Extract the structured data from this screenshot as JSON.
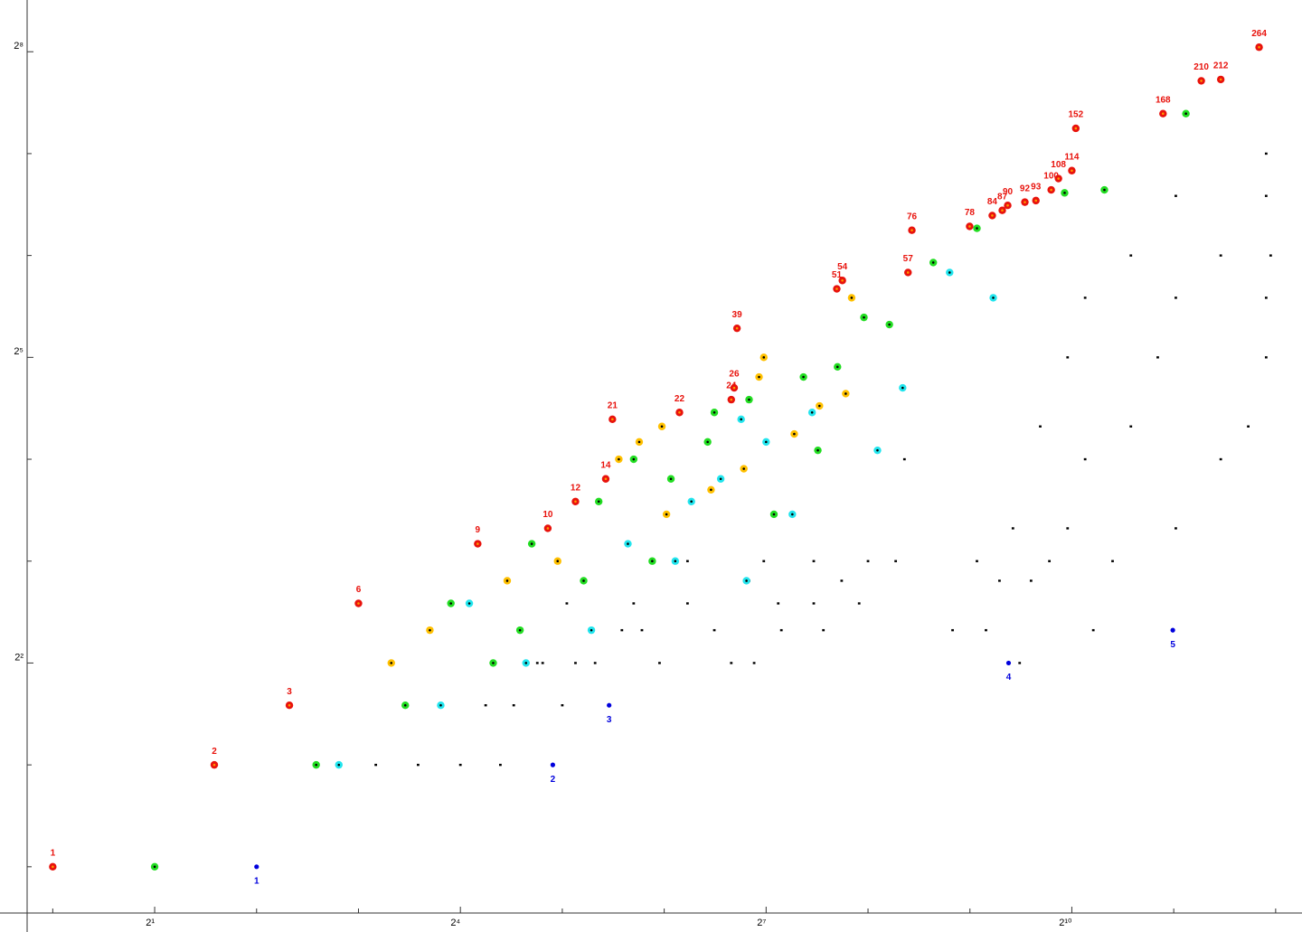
{
  "chart_data": {
    "type": "scatter",
    "xscale": "log2",
    "yscale": "log2",
    "xlim": [
      0.84,
      4900
    ],
    "ylim": [
      0.73,
      364
    ],
    "xticks": [
      {
        "value": 2,
        "label": "2¹"
      },
      {
        "value": 16,
        "label": "2⁴"
      },
      {
        "value": 128,
        "label": "2⁷"
      },
      {
        "value": 1024,
        "label": "2¹⁰"
      }
    ],
    "yticks": [
      {
        "value": 4,
        "label": "2²"
      },
      {
        "value": 32,
        "label": "2⁵"
      },
      {
        "value": 256,
        "label": "2⁸"
      }
    ],
    "xminor_ticks": [
      1,
      4,
      8,
      32,
      64,
      256,
      512,
      2048,
      4096
    ],
    "yminor_ticks": [
      1,
      2,
      8,
      16,
      64,
      128
    ],
    "series": [
      {
        "color": "#000000",
        "marker": "dot",
        "x": [
          9,
          12,
          16,
          21,
          19,
          23,
          32,
          27,
          28,
          35,
          40,
          62,
          101,
          118,
          718,
          48,
          55,
          90,
          142,
          189,
          455,
          571,
          1185,
          33,
          52,
          75,
          139,
          177,
          241,
          114,
          214,
          626,
          776,
          75,
          126,
          177,
          256,
          309,
          537,
          879,
          1351,
          686,
          995,
          2077,
          328,
          1121,
          2820,
          826,
          1530,
          3400,
          995,
          1837,
          3840,
          1121,
          2077,
          3840,
          1530,
          2820,
          3960,
          2077,
          3840,
          3840
        ],
        "values": [
          2,
          2,
          2,
          2,
          3,
          3,
          3,
          4,
          4,
          4,
          4,
          4,
          4,
          4,
          4,
          5,
          5,
          5,
          5,
          5,
          5,
          5,
          5,
          6,
          6,
          6,
          6,
          6,
          6,
          7,
          7,
          7,
          7,
          8,
          8,
          8,
          8,
          8,
          8,
          8,
          8,
          10,
          10,
          10,
          16,
          16,
          16,
          20,
          20,
          20,
          32,
          32,
          32,
          48,
          48,
          48,
          64,
          64,
          64,
          96,
          96,
          128
        ]
      },
      {
        "color": "#22e5ee",
        "center": "#000000",
        "marker": "ring",
        "x": [
          7,
          14,
          25,
          17,
          39,
          50,
          69,
          77,
          94,
          108,
          112,
          128,
          153,
          175,
          273,
          324,
          446,
          600
        ],
        "values": [
          2,
          3,
          4,
          6,
          5,
          9,
          8,
          12,
          14,
          21,
          7,
          18,
          11,
          22,
          17,
          26,
          57,
          48
        ]
      },
      {
        "color": "#22dd22",
        "center": "#000000",
        "marker": "ring",
        "x": [
          2,
          6,
          11,
          20,
          15,
          24,
          26,
          37,
          41,
          52,
          59,
          67,
          86,
          90,
          114,
          135,
          165,
          182,
          208,
          249,
          296,
          399,
          537,
          975,
          1278,
          2225
        ],
        "values": [
          1,
          2,
          3,
          4,
          6,
          5,
          9,
          7,
          12,
          16,
          8,
          14,
          18,
          22,
          24,
          11,
          28,
          17,
          30,
          42,
          40,
          61,
          77,
          98,
          100,
          168
        ]
      },
      {
        "color": "#ffc000",
        "center": "#000000",
        "marker": "ring",
        "x": [
          10,
          13,
          22,
          31,
          47,
          54,
          63,
          65,
          88,
          110,
          122,
          126,
          155,
          184,
          220,
          229
        ],
        "values": [
          4,
          5,
          7,
          8,
          16,
          18,
          20,
          11,
          13,
          15,
          28,
          32,
          19,
          23,
          25,
          48
        ]
      },
      {
        "color": "#e8120c",
        "center": "#ff9900",
        "marker": "ring",
        "label_position": "above",
        "x": [
          1,
          3,
          5,
          8,
          18,
          29,
          35,
          43,
          45,
          71,
          101,
          103,
          105,
          207,
          215,
          336,
          345,
          511,
          596,
          638,
          662,
          744,
          802,
          890,
          935,
          1024,
          1052,
          1904,
          2470,
          2820,
          3660
        ],
        "values": [
          1,
          2,
          3,
          6,
          9,
          10,
          12,
          14,
          21,
          22,
          24,
          26,
          39,
          51,
          54,
          57,
          76,
          78,
          84,
          87,
          90,
          92,
          93,
          100,
          108,
          114,
          152,
          168,
          210,
          212,
          264
        ]
      },
      {
        "color": "#0000dd",
        "marker": "small",
        "label_position": "below",
        "x": [
          4,
          30,
          44,
          666,
          2035
        ],
        "values": [
          1,
          2,
          3,
          4,
          5
        ]
      }
    ]
  }
}
